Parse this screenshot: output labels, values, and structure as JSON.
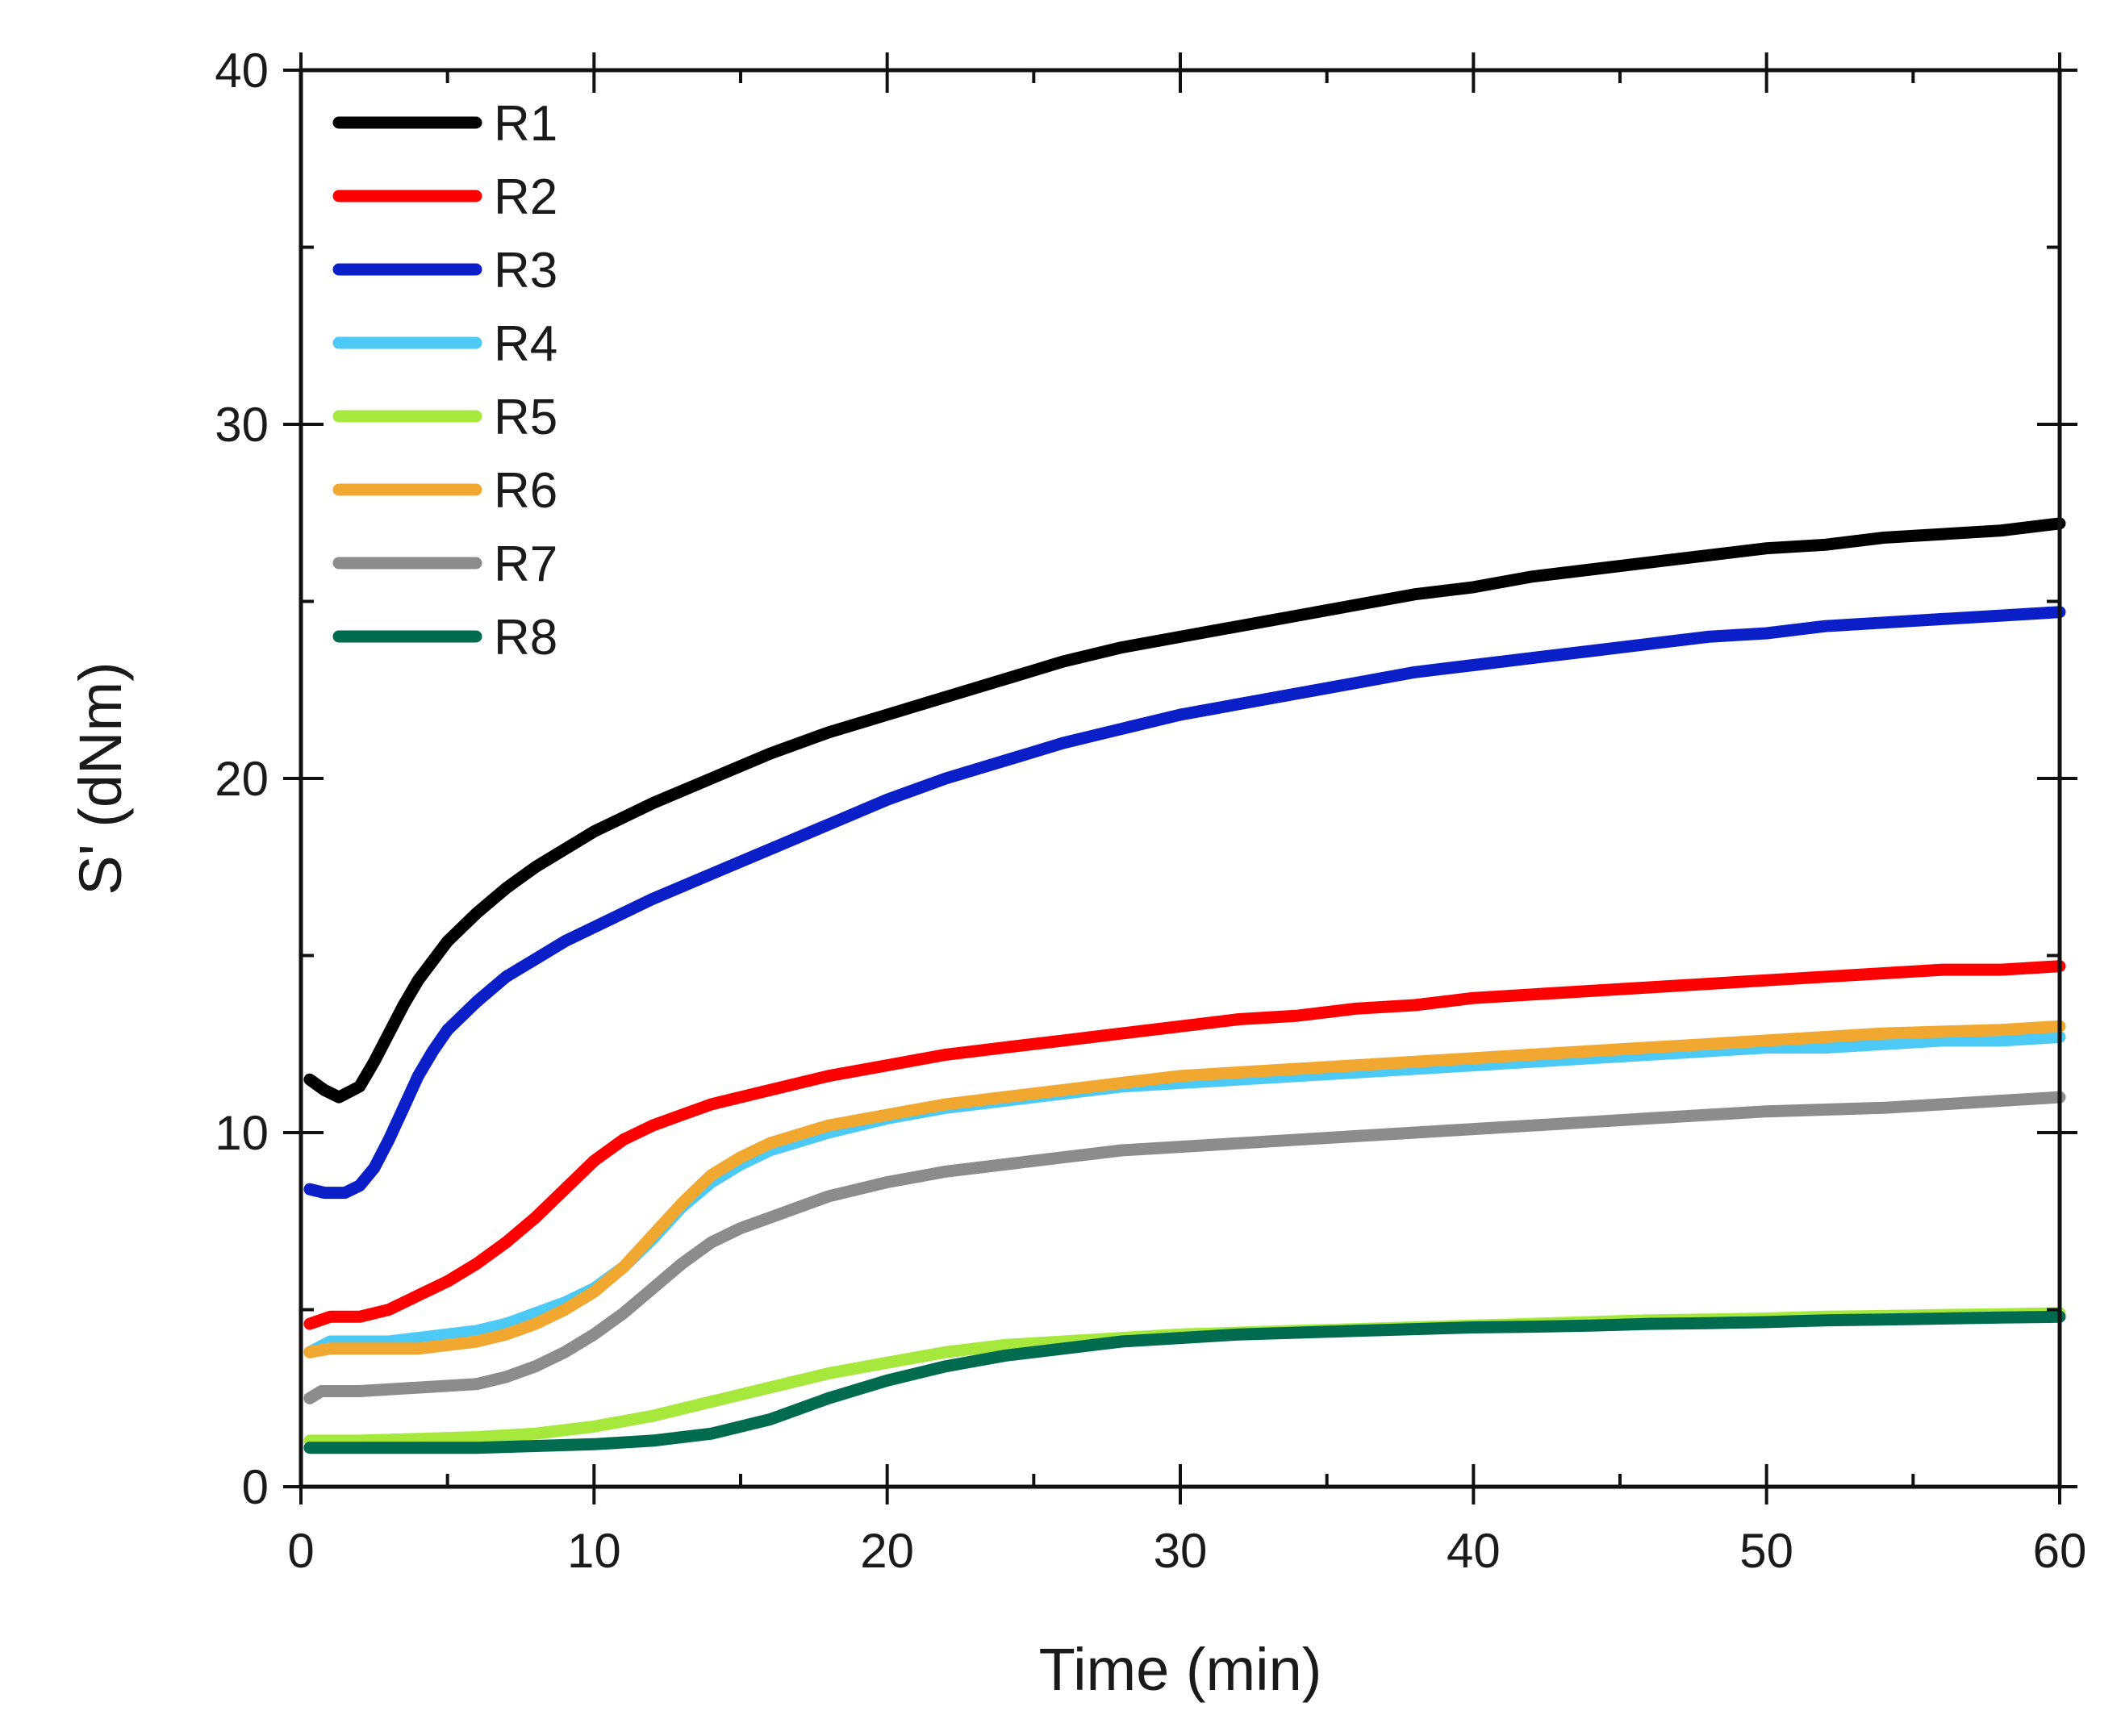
{
  "chart_data": {
    "type": "line",
    "title": "",
    "xlabel": "Time (min)",
    "ylabel": "S' (dNm)",
    "xlim": [
      0,
      60
    ],
    "ylim": [
      0,
      40
    ],
    "xticks": [
      0,
      10,
      20,
      30,
      40,
      50,
      60
    ],
    "yticks": [
      0,
      10,
      20,
      30,
      40
    ],
    "x_minor_step": 5,
    "y_minor_step": 5,
    "grid": false,
    "legend_position": "top-left",
    "series": [
      {
        "name": "R1",
        "color": "#000000",
        "points": [
          [
            0.3,
            11.5
          ],
          [
            0.8,
            11.2
          ],
          [
            1.3,
            11.0
          ],
          [
            2,
            11.3
          ],
          [
            2.5,
            12.0
          ],
          [
            3,
            12.8
          ],
          [
            3.5,
            13.6
          ],
          [
            4,
            14.3
          ],
          [
            5,
            15.4
          ],
          [
            6,
            16.2
          ],
          [
            7,
            16.9
          ],
          [
            8,
            17.5
          ],
          [
            9,
            18.0
          ],
          [
            10,
            18.5
          ],
          [
            12,
            19.3
          ],
          [
            14,
            20.0
          ],
          [
            16,
            20.7
          ],
          [
            18,
            21.3
          ],
          [
            20,
            21.8
          ],
          [
            22,
            22.3
          ],
          [
            24,
            22.8
          ],
          [
            26,
            23.3
          ],
          [
            28,
            23.7
          ],
          [
            30,
            24.0
          ],
          [
            32,
            24.3
          ],
          [
            34,
            24.6
          ],
          [
            36,
            24.9
          ],
          [
            38,
            25.2
          ],
          [
            40,
            25.4
          ],
          [
            42,
            25.7
          ],
          [
            44,
            25.9
          ],
          [
            46,
            26.1
          ],
          [
            48,
            26.3
          ],
          [
            50,
            26.5
          ],
          [
            52,
            26.6
          ],
          [
            54,
            26.8
          ],
          [
            56,
            26.9
          ],
          [
            58,
            27.0
          ],
          [
            60,
            27.2
          ]
        ]
      },
      {
        "name": "R2",
        "color": "#ff0000",
        "points": [
          [
            0.3,
            4.6
          ],
          [
            1,
            4.8
          ],
          [
            2,
            4.8
          ],
          [
            3,
            5.0
          ],
          [
            4,
            5.4
          ],
          [
            5,
            5.8
          ],
          [
            6,
            6.3
          ],
          [
            7,
            6.9
          ],
          [
            8,
            7.6
          ],
          [
            9,
            8.4
          ],
          [
            10,
            9.2
          ],
          [
            11,
            9.8
          ],
          [
            12,
            10.2
          ],
          [
            13,
            10.5
          ],
          [
            14,
            10.8
          ],
          [
            16,
            11.2
          ],
          [
            18,
            11.6
          ],
          [
            20,
            11.9
          ],
          [
            22,
            12.2
          ],
          [
            24,
            12.4
          ],
          [
            26,
            12.6
          ],
          [
            28,
            12.8
          ],
          [
            30,
            13.0
          ],
          [
            32,
            13.2
          ],
          [
            34,
            13.3
          ],
          [
            36,
            13.5
          ],
          [
            38,
            13.6
          ],
          [
            40,
            13.8
          ],
          [
            42,
            13.9
          ],
          [
            44,
            14.0
          ],
          [
            46,
            14.1
          ],
          [
            48,
            14.2
          ],
          [
            50,
            14.3
          ],
          [
            52,
            14.4
          ],
          [
            54,
            14.5
          ],
          [
            56,
            14.6
          ],
          [
            58,
            14.6
          ],
          [
            60,
            14.7
          ]
        ]
      },
      {
        "name": "R3",
        "color": "#0a1fc8",
        "points": [
          [
            0.3,
            8.4
          ],
          [
            0.8,
            8.3
          ],
          [
            1.5,
            8.3
          ],
          [
            2,
            8.5
          ],
          [
            2.5,
            9.0
          ],
          [
            3,
            9.8
          ],
          [
            3.5,
            10.7
          ],
          [
            4,
            11.6
          ],
          [
            4.5,
            12.3
          ],
          [
            5,
            12.9
          ],
          [
            6,
            13.7
          ],
          [
            7,
            14.4
          ],
          [
            8,
            14.9
          ],
          [
            9,
            15.4
          ],
          [
            10,
            15.8
          ],
          [
            12,
            16.6
          ],
          [
            14,
            17.3
          ],
          [
            16,
            18.0
          ],
          [
            18,
            18.7
          ],
          [
            20,
            19.4
          ],
          [
            22,
            20.0
          ],
          [
            24,
            20.5
          ],
          [
            26,
            21.0
          ],
          [
            28,
            21.4
          ],
          [
            30,
            21.8
          ],
          [
            32,
            22.1
          ],
          [
            34,
            22.4
          ],
          [
            36,
            22.7
          ],
          [
            38,
            23.0
          ],
          [
            40,
            23.2
          ],
          [
            42,
            23.4
          ],
          [
            44,
            23.6
          ],
          [
            46,
            23.8
          ],
          [
            48,
            24.0
          ],
          [
            50,
            24.1
          ],
          [
            52,
            24.3
          ],
          [
            54,
            24.4
          ],
          [
            56,
            24.5
          ],
          [
            58,
            24.6
          ],
          [
            60,
            24.7
          ]
        ]
      },
      {
        "name": "R4",
        "color": "#4cc9f5",
        "points": [
          [
            0.3,
            3.8
          ],
          [
            1,
            4.1
          ],
          [
            2,
            4.1
          ],
          [
            3,
            4.1
          ],
          [
            4,
            4.2
          ],
          [
            5,
            4.3
          ],
          [
            6,
            4.4
          ],
          [
            7,
            4.6
          ],
          [
            8,
            4.9
          ],
          [
            9,
            5.2
          ],
          [
            10,
            5.6
          ],
          [
            11,
            6.2
          ],
          [
            12,
            7.0
          ],
          [
            13,
            7.9
          ],
          [
            14,
            8.6
          ],
          [
            15,
            9.1
          ],
          [
            16,
            9.5
          ],
          [
            18,
            10.0
          ],
          [
            20,
            10.4
          ],
          [
            22,
            10.7
          ],
          [
            24,
            10.9
          ],
          [
            26,
            11.1
          ],
          [
            28,
            11.3
          ],
          [
            30,
            11.4
          ],
          [
            32,
            11.5
          ],
          [
            34,
            11.6
          ],
          [
            36,
            11.7
          ],
          [
            38,
            11.8
          ],
          [
            40,
            11.9
          ],
          [
            42,
            12.0
          ],
          [
            44,
            12.1
          ],
          [
            46,
            12.2
          ],
          [
            48,
            12.3
          ],
          [
            50,
            12.4
          ],
          [
            52,
            12.4
          ],
          [
            54,
            12.5
          ],
          [
            56,
            12.6
          ],
          [
            58,
            12.6
          ],
          [
            60,
            12.7
          ]
        ]
      },
      {
        "name": "R5",
        "color": "#a6e83c",
        "points": [
          [
            0.3,
            1.3
          ],
          [
            2,
            1.3
          ],
          [
            4,
            1.35
          ],
          [
            6,
            1.4
          ],
          [
            8,
            1.5
          ],
          [
            10,
            1.7
          ],
          [
            12,
            2.0
          ],
          [
            14,
            2.4
          ],
          [
            16,
            2.8
          ],
          [
            18,
            3.2
          ],
          [
            20,
            3.5
          ],
          [
            22,
            3.8
          ],
          [
            24,
            4.0
          ],
          [
            26,
            4.1
          ],
          [
            28,
            4.2
          ],
          [
            30,
            4.3
          ],
          [
            32,
            4.35
          ],
          [
            34,
            4.4
          ],
          [
            36,
            4.45
          ],
          [
            38,
            4.5
          ],
          [
            40,
            4.55
          ],
          [
            42,
            4.6
          ],
          [
            44,
            4.65
          ],
          [
            46,
            4.7
          ],
          [
            48,
            4.72
          ],
          [
            50,
            4.75
          ],
          [
            52,
            4.8
          ],
          [
            54,
            4.82
          ],
          [
            56,
            4.85
          ],
          [
            58,
            4.87
          ],
          [
            60,
            4.9
          ]
        ]
      },
      {
        "name": "R6",
        "color": "#f0a830",
        "points": [
          [
            0.3,
            3.8
          ],
          [
            1,
            3.9
          ],
          [
            2,
            3.9
          ],
          [
            3,
            3.9
          ],
          [
            4,
            3.9
          ],
          [
            5,
            4.0
          ],
          [
            6,
            4.1
          ],
          [
            7,
            4.3
          ],
          [
            8,
            4.6
          ],
          [
            9,
            5.0
          ],
          [
            10,
            5.5
          ],
          [
            11,
            6.2
          ],
          [
            12,
            7.1
          ],
          [
            13,
            8.0
          ],
          [
            14,
            8.8
          ],
          [
            15,
            9.3
          ],
          [
            16,
            9.7
          ],
          [
            18,
            10.2
          ],
          [
            20,
            10.5
          ],
          [
            22,
            10.8
          ],
          [
            24,
            11.0
          ],
          [
            26,
            11.2
          ],
          [
            28,
            11.4
          ],
          [
            30,
            11.6
          ],
          [
            32,
            11.7
          ],
          [
            34,
            11.8
          ],
          [
            36,
            11.9
          ],
          [
            38,
            12.0
          ],
          [
            40,
            12.1
          ],
          [
            42,
            12.2
          ],
          [
            44,
            12.3
          ],
          [
            46,
            12.4
          ],
          [
            48,
            12.5
          ],
          [
            50,
            12.6
          ],
          [
            52,
            12.7
          ],
          [
            54,
            12.8
          ],
          [
            56,
            12.85
          ],
          [
            58,
            12.9
          ],
          [
            60,
            13.0
          ]
        ]
      },
      {
        "name": "R7",
        "color": "#8c8c8c",
        "points": [
          [
            0.3,
            2.5
          ],
          [
            0.7,
            2.7
          ],
          [
            2,
            2.7
          ],
          [
            4,
            2.8
          ],
          [
            6,
            2.9
          ],
          [
            7,
            3.1
          ],
          [
            8,
            3.4
          ],
          [
            9,
            3.8
          ],
          [
            10,
            4.3
          ],
          [
            11,
            4.9
          ],
          [
            12,
            5.6
          ],
          [
            13,
            6.3
          ],
          [
            14,
            6.9
          ],
          [
            15,
            7.3
          ],
          [
            16,
            7.6
          ],
          [
            18,
            8.2
          ],
          [
            20,
            8.6
          ],
          [
            22,
            8.9
          ],
          [
            24,
            9.1
          ],
          [
            26,
            9.3
          ],
          [
            28,
            9.5
          ],
          [
            30,
            9.6
          ],
          [
            32,
            9.7
          ],
          [
            34,
            9.8
          ],
          [
            36,
            9.9
          ],
          [
            38,
            10.0
          ],
          [
            40,
            10.1
          ],
          [
            42,
            10.2
          ],
          [
            44,
            10.3
          ],
          [
            46,
            10.4
          ],
          [
            48,
            10.5
          ],
          [
            50,
            10.6
          ],
          [
            52,
            10.65
          ],
          [
            54,
            10.7
          ],
          [
            56,
            10.8
          ],
          [
            58,
            10.9
          ],
          [
            60,
            11.0
          ]
        ]
      },
      {
        "name": "R8",
        "color": "#006b4f",
        "points": [
          [
            0.3,
            1.1
          ],
          [
            2,
            1.1
          ],
          [
            4,
            1.1
          ],
          [
            6,
            1.1
          ],
          [
            8,
            1.15
          ],
          [
            10,
            1.2
          ],
          [
            12,
            1.3
          ],
          [
            14,
            1.5
          ],
          [
            16,
            1.9
          ],
          [
            18,
            2.5
          ],
          [
            20,
            3.0
          ],
          [
            22,
            3.4
          ],
          [
            24,
            3.7
          ],
          [
            26,
            3.9
          ],
          [
            28,
            4.1
          ],
          [
            30,
            4.2
          ],
          [
            32,
            4.3
          ],
          [
            34,
            4.35
          ],
          [
            36,
            4.4
          ],
          [
            38,
            4.45
          ],
          [
            40,
            4.5
          ],
          [
            42,
            4.52
          ],
          [
            44,
            4.55
          ],
          [
            46,
            4.6
          ],
          [
            48,
            4.62
          ],
          [
            50,
            4.65
          ],
          [
            52,
            4.7
          ],
          [
            54,
            4.72
          ],
          [
            56,
            4.75
          ],
          [
            58,
            4.78
          ],
          [
            60,
            4.8
          ]
        ]
      }
    ]
  }
}
